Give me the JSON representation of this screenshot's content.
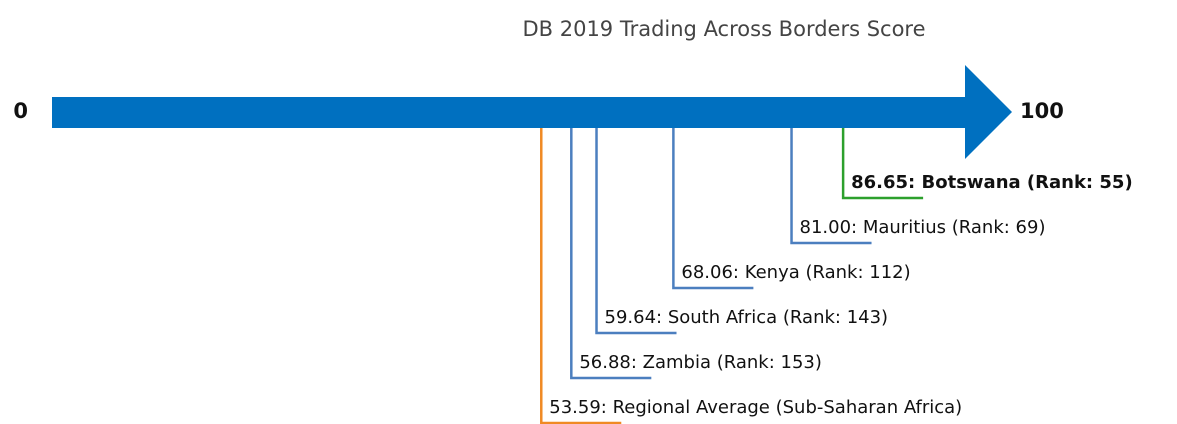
{
  "chart_data": {
    "type": "numberline",
    "title": "DB 2019 Trading Across Borders Score",
    "xlim": [
      0,
      100
    ],
    "xticks": [
      0,
      100
    ],
    "axis_color": "#0070c0",
    "values": [
      86.65,
      81.0,
      68.06,
      59.64,
      56.88,
      53.59
    ],
    "value_labels": [
      "86.65: Botswana (Rank: 55)",
      "81.00: Mauritius (Rank: 69)",
      "68.06: Kenya (Rank: 112)",
      "59.64: South Africa (Rank: 143)",
      "56.88: Zambia (Rank: 153)",
      "53.59: Regional Average (Sub-Saharan Africa)"
    ],
    "colors": [
      "#2ca02c",
      "#4c7fbf",
      "#4c7fbf",
      "#4c7fbf",
      "#4c7fbf",
      "#f08a24"
    ],
    "bold": [
      true,
      false,
      false,
      false,
      false,
      false
    ]
  }
}
